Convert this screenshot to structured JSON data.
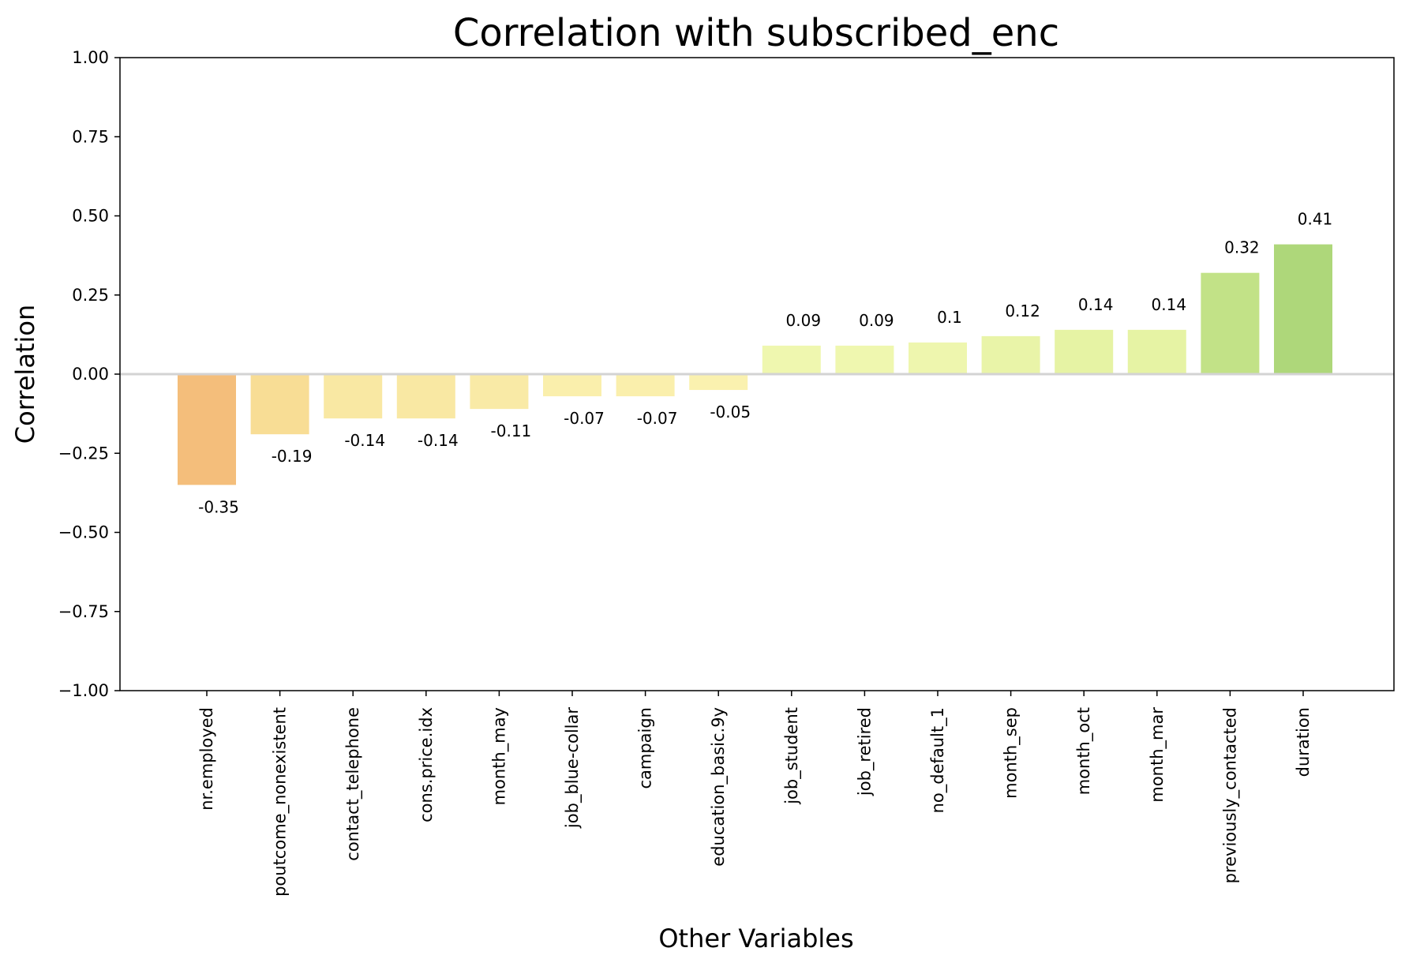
{
  "chart_data": {
    "type": "bar",
    "title": "Correlation with subscribed_enc",
    "xlabel": "Other Variables",
    "ylabel": "Correlation",
    "ylim": [
      -1.0,
      1.0
    ],
    "yticks": [
      "−1.00",
      "−0.75",
      "−0.50",
      "−0.25",
      "0.00",
      "0.25",
      "0.50",
      "0.75",
      "1.00"
    ],
    "grid": false,
    "legend": "none",
    "categories": [
      "nr.employed",
      "poutcome_nonexistent",
      "contact_telephone",
      "cons.price.idx",
      "month_may",
      "job_blue-collar",
      "campaign",
      "education_basic.9y",
      "job_student",
      "job_retired",
      "no_default_1",
      "month_sep",
      "month_oct",
      "month_mar",
      "previously_contacted",
      "duration"
    ],
    "values": [
      -0.35,
      -0.19,
      -0.14,
      -0.14,
      -0.11,
      -0.07,
      -0.07,
      -0.05,
      0.09,
      0.09,
      0.1,
      0.12,
      0.14,
      0.14,
      0.32,
      0.41
    ],
    "value_labels": [
      "-0.35",
      "-0.19",
      "-0.14",
      "-0.14",
      "-0.11",
      "-0.07",
      "-0.07",
      "-0.05",
      "0.09",
      "0.09",
      "0.1",
      "0.12",
      "0.14",
      "0.14",
      "0.32",
      "0.41"
    ],
    "bar_colors": [
      "#f4be7b",
      "#f8dd95",
      "#f9e8a3",
      "#f9e8a3",
      "#f9eaa6",
      "#faefac",
      "#faefac",
      "#faf1af",
      "#eff7af",
      "#eff7af",
      "#eef6ae",
      "#e9f4a8",
      "#e6f3a4",
      "#e6f3a4",
      "#c2e287",
      "#aed77a"
    ],
    "zero_line_color": "#d3d3d3"
  }
}
